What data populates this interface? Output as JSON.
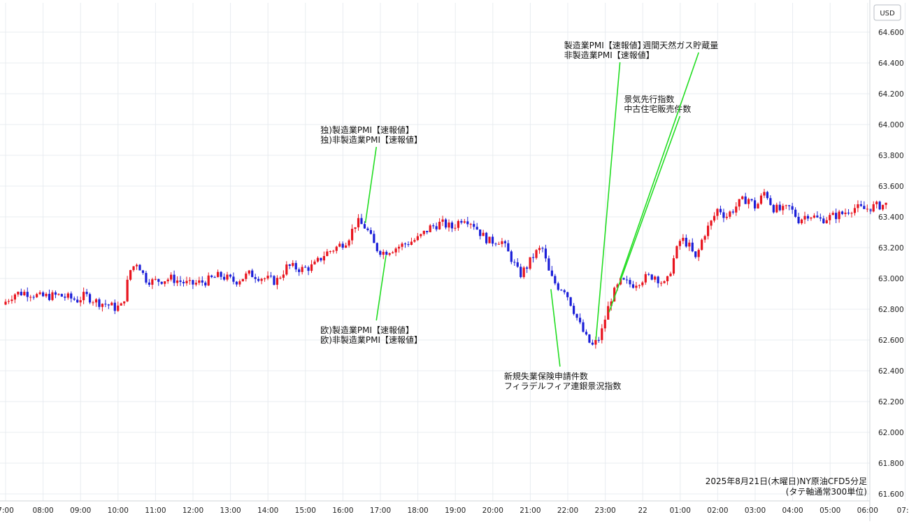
{
  "chart_data": {
    "type": "candlestick",
    "title": "2025年8月21日(木曜日)NY原油CFD5分足",
    "subtitle": "(タテ軸通常300単位)",
    "currency_label": "USD",
    "ylim": [
      61.6,
      64.7
    ],
    "yticks": [
      "61.600",
      "61.800",
      "62.000",
      "62.200",
      "62.400",
      "62.600",
      "62.800",
      "63.000",
      "63.200",
      "63.400",
      "63.600",
      "63.800",
      "64.000",
      "64.200",
      "64.400",
      "64.600"
    ],
    "xlim": [
      7.0,
      31.1
    ],
    "xticks": [
      {
        "label": "7:00",
        "x": 7
      },
      {
        "label": "08:00",
        "x": 8
      },
      {
        "label": "09:00",
        "x": 9
      },
      {
        "label": "10:00",
        "x": 10
      },
      {
        "label": "11:00",
        "x": 11
      },
      {
        "label": "12:00",
        "x": 12
      },
      {
        "label": "13:00",
        "x": 13
      },
      {
        "label": "14:00",
        "x": 14
      },
      {
        "label": "15:00",
        "x": 15
      },
      {
        "label": "16:00",
        "x": 16
      },
      {
        "label": "17:00",
        "x": 17
      },
      {
        "label": "18:00",
        "x": 18
      },
      {
        "label": "19:00",
        "x": 19
      },
      {
        "label": "20:00",
        "x": 20
      },
      {
        "label": "21:00",
        "x": 21
      },
      {
        "label": "22:00",
        "x": 22
      },
      {
        "label": "23:00",
        "x": 23
      },
      {
        "label": "22",
        "x": 24
      },
      {
        "label": "01:00",
        "x": 25
      },
      {
        "label": "02:00",
        "x": 26
      },
      {
        "label": "03:00",
        "x": 27
      },
      {
        "label": "04:00",
        "x": 28
      },
      {
        "label": "05:00",
        "x": 29
      },
      {
        "label": "06:00",
        "x": 30
      },
      {
        "label": "07:0",
        "x": 31
      }
    ],
    "bull_color": "#e8141e",
    "bear_color": "#1b1fd8",
    "annotation_color": "#22dd22",
    "price_path": [
      [
        7.0,
        62.83
      ],
      [
        7.3,
        62.9
      ],
      [
        7.6,
        62.91
      ],
      [
        7.8,
        62.9
      ],
      [
        8.0,
        62.88
      ],
      [
        8.5,
        62.89
      ],
      [
        9.0,
        62.86
      ],
      [
        9.2,
        62.89
      ],
      [
        9.5,
        62.85
      ],
      [
        9.8,
        62.83
      ],
      [
        10.0,
        62.81
      ],
      [
        10.2,
        62.82
      ],
      [
        10.4,
        63.05
      ],
      [
        10.6,
        63.11
      ],
      [
        10.8,
        63.0
      ],
      [
        11.0,
        62.98
      ],
      [
        11.5,
        63.0
      ],
      [
        12.0,
        62.96
      ],
      [
        12.4,
        62.98
      ],
      [
        12.8,
        63.02
      ],
      [
        13.2,
        62.98
      ],
      [
        13.6,
        63.03
      ],
      [
        14.0,
        63.0
      ],
      [
        14.3,
        62.98
      ],
      [
        14.6,
        63.08
      ],
      [
        15.0,
        63.06
      ],
      [
        15.3,
        63.08
      ],
      [
        15.6,
        63.16
      ],
      [
        15.9,
        63.2
      ],
      [
        16.2,
        63.25
      ],
      [
        16.45,
        63.37
      ],
      [
        16.7,
        63.33
      ],
      [
        16.95,
        63.2
      ],
      [
        17.15,
        63.17
      ],
      [
        17.5,
        63.2
      ],
      [
        17.8,
        63.23
      ],
      [
        18.1,
        63.26
      ],
      [
        18.4,
        63.33
      ],
      [
        18.7,
        63.36
      ],
      [
        19.0,
        63.33
      ],
      [
        19.3,
        63.4
      ],
      [
        19.55,
        63.36
      ],
      [
        19.8,
        63.28
      ],
      [
        20.0,
        63.24
      ],
      [
        20.3,
        63.25
      ],
      [
        20.6,
        63.12
      ],
      [
        20.8,
        63.02
      ],
      [
        21.0,
        63.08
      ],
      [
        21.2,
        63.16
      ],
      [
        21.4,
        63.2
      ],
      [
        21.6,
        63.02
      ],
      [
        21.8,
        62.95
      ],
      [
        22.0,
        62.93
      ],
      [
        22.2,
        62.82
      ],
      [
        22.4,
        62.7
      ],
      [
        22.6,
        62.6
      ],
      [
        22.75,
        62.56
      ],
      [
        22.95,
        62.62
      ],
      [
        23.1,
        62.76
      ],
      [
        23.25,
        62.88
      ],
      [
        23.5,
        62.98
      ],
      [
        23.8,
        62.96
      ],
      [
        24.1,
        63.0
      ],
      [
        24.4,
        63.02
      ],
      [
        24.7,
        62.95
      ],
      [
        24.9,
        63.12
      ],
      [
        25.1,
        63.26
      ],
      [
        25.3,
        63.22
      ],
      [
        25.5,
        63.12
      ],
      [
        25.7,
        63.28
      ],
      [
        25.9,
        63.36
      ],
      [
        26.1,
        63.46
      ],
      [
        26.3,
        63.4
      ],
      [
        26.5,
        63.45
      ],
      [
        26.7,
        63.5
      ],
      [
        26.9,
        63.52
      ],
      [
        27.1,
        63.46
      ],
      [
        27.35,
        63.57
      ],
      [
        27.55,
        63.46
      ],
      [
        27.8,
        63.44
      ],
      [
        28.0,
        63.46
      ],
      [
        28.25,
        63.38
      ],
      [
        28.5,
        63.42
      ],
      [
        28.8,
        63.38
      ],
      [
        29.1,
        63.4
      ],
      [
        29.4,
        63.42
      ],
      [
        29.7,
        63.46
      ],
      [
        30.0,
        63.45
      ],
      [
        30.3,
        63.47
      ],
      [
        30.55,
        63.48
      ]
    ],
    "candle_interval_hours": 0.0833,
    "annotations": [
      {
        "lines": [
          "独)製造業PMI【速報値】",
          "独)非製造業PMI【速報値】"
        ],
        "target": [
          16.6,
          63.36
        ],
        "label_anchor": [
          15.4,
          64.0
        ],
        "label_pos": "above"
      },
      {
        "lines": [
          "欧)製造業PMI【速報値】",
          "欧)非製造業PMI【速報値】"
        ],
        "target": [
          17.15,
          63.15
        ],
        "label_anchor": [
          15.4,
          62.7
        ],
        "label_pos": "below"
      },
      {
        "lines": [
          "新規失業保険申請件数",
          "フィラデルフィア連銀景況指数"
        ],
        "target": [
          21.55,
          62.93
        ],
        "label_anchor": [
          20.3,
          62.4
        ],
        "label_pos": "below"
      },
      {
        "lines": [
          "製造業PMI【速報値】",
          "非製造業PMI【速報値】"
        ],
        "target": [
          22.75,
          62.6
        ],
        "label_anchor": [
          21.9,
          64.55
        ],
        "label_pos": "above"
      },
      {
        "lines": [
          "景気先行指数",
          "中古住宅販売件数"
        ],
        "target": [
          23.1,
          62.78
        ],
        "label_anchor": [
          23.5,
          64.2
        ],
        "label_pos": "above"
      },
      {
        "lines": [
          "週間天然ガス貯蔵量"
        ],
        "target": [
          23.4,
          63.0
        ],
        "label_anchor": [
          24.0,
          64.55
        ],
        "label_pos": "above"
      }
    ]
  }
}
